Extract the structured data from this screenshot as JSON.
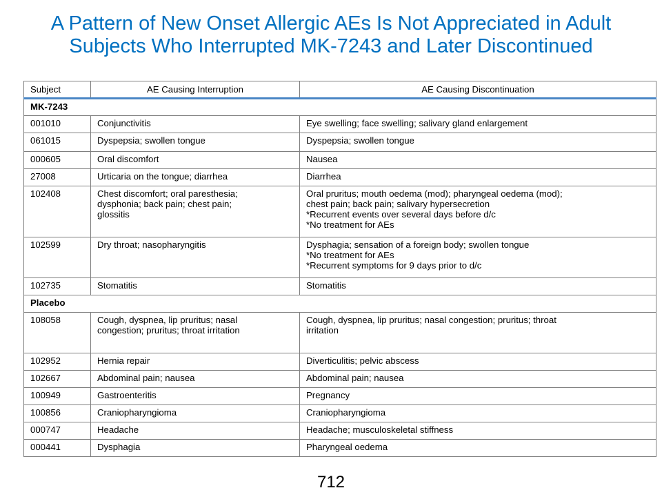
{
  "title": {
    "line1": "A Pattern of New Onset Allergic AEs Is Not Appreciated in Adult",
    "line2": "Subjects Who Interrupted MK-7243 and Later Discontinued"
  },
  "table": {
    "headers": [
      "Subject",
      "AE Causing Interruption",
      "AE Causing Discontinuation"
    ],
    "groups": [
      {
        "label": "MK-7243",
        "rows": [
          {
            "subject": "001010",
            "interruption": [
              "Conjunctivitis"
            ],
            "discontinuation": [
              "Eye swelling; face swelling; salivary gland enlargement"
            ]
          },
          {
            "subject": "061015",
            "interruption": [
              "Dyspepsia; swollen tongue"
            ],
            "discontinuation": [
              "Dyspepsia; swollen tongue"
            ]
          },
          {
            "subject": "000605",
            "interruption": [
              "Oral discomfort"
            ],
            "discontinuation": [
              "Nausea"
            ]
          },
          {
            "subject": "27008",
            "interruption": [
              "Urticaria on the tongue; diarrhea"
            ],
            "discontinuation": [
              "Diarrhea"
            ]
          },
          {
            "subject": "102408",
            "interruption": [
              "Chest discomfort; oral paresthesia;",
              "dysphonia; back pain; chest pain;",
              "glossitis"
            ],
            "discontinuation": [
              "Oral pruritus; mouth oedema (mod); pharyngeal oedema (mod);",
              "chest pain; back pain; salivary hypersecretion",
              "*Recurrent events over several days before d/c",
              "*No treatment for AEs"
            ]
          },
          {
            "subject": "102599",
            "interruption": [
              "Dry throat; nasopharyngitis"
            ],
            "discontinuation": [
              "Dysphagia; sensation of a foreign body; swollen tongue",
              "*No treatment for AEs",
              "*Recurrent symptoms for 9 days prior to d/c"
            ]
          },
          {
            "subject": "102735",
            "interruption": [
              "Stomatitis"
            ],
            "discontinuation": [
              "Stomatitis"
            ]
          }
        ]
      },
      {
        "label": "Placebo",
        "rows": [
          {
            "subject": "108058",
            "interruption": [
              "Cough, dyspnea, lip pruritus; nasal",
              "congestion; pruritus; throat irritation"
            ],
            "discontinuation": [
              "Cough, dyspnea, lip pruritus; nasal congestion; pruritus; throat",
              "irritation"
            ]
          },
          {
            "subject": "102952",
            "interruption": [
              "Hernia repair"
            ],
            "discontinuation": [
              "Diverticulitis; pelvic abscess"
            ]
          },
          {
            "subject": "102667",
            "interruption": [
              "Abdominal pain; nausea"
            ],
            "discontinuation": [
              "Abdominal pain; nausea"
            ]
          },
          {
            "subject": "100949",
            "interruption": [
              "Gastroenteritis"
            ],
            "discontinuation": [
              "Pregnancy"
            ]
          },
          {
            "subject": "100856",
            "interruption": [
              "Craniopharyngioma"
            ],
            "discontinuation": [
              "Craniopharyngioma"
            ]
          },
          {
            "subject": "000747",
            "interruption": [
              "Headache"
            ],
            "discontinuation": [
              "Headache; musculoskeletal stiffness"
            ]
          },
          {
            "subject": "000441",
            "interruption": [
              "Dysphagia"
            ],
            "discontinuation": [
              "Pharyngeal oedema"
            ]
          }
        ]
      }
    ]
  },
  "page_number": "712",
  "colors": {
    "title": "#0070C0",
    "header_rule": "#4a86c5",
    "border": "#7f7f7f"
  }
}
